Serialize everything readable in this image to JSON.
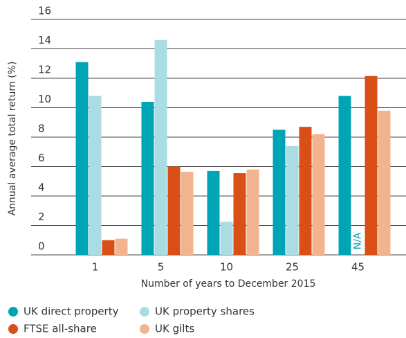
{
  "chart_data": {
    "type": "bar",
    "y_label": "Annual average total return (%)",
    "x_label": "Number of years to December 2015",
    "categories": [
      "1",
      "5",
      "10",
      "25",
      "45"
    ],
    "series": [
      {
        "name": "UK direct property",
        "color": "#00a5b5",
        "values": [
          13.1,
          10.4,
          5.7,
          8.5,
          10.8
        ]
      },
      {
        "name": "UK property shares",
        "color": "#a9dce3",
        "values": [
          10.8,
          14.6,
          2.25,
          7.4,
          null
        ]
      },
      {
        "name": "FTSE all-share",
        "color": "#d94f16",
        "values": [
          1.0,
          6.0,
          5.55,
          8.7,
          12.15
        ]
      },
      {
        "name": "UK gilts",
        "color": "#f2b48e",
        "values": [
          1.1,
          5.65,
          5.8,
          8.2,
          9.8
        ]
      }
    ],
    "na_label": "N/A",
    "ylim": [
      0,
      16
    ],
    "yticks": [
      0,
      2,
      4,
      6,
      8,
      10,
      12,
      14,
      16
    ],
    "grid": true
  }
}
